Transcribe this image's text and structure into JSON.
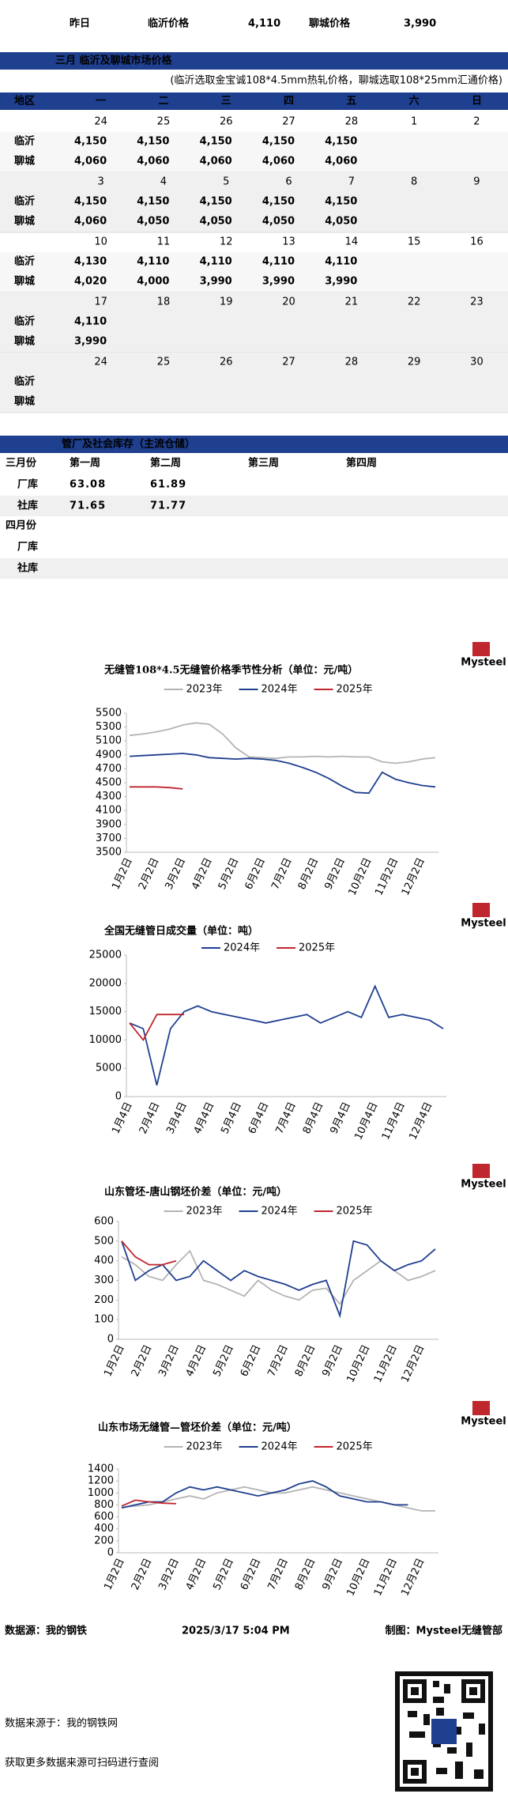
{
  "top": {
    "yesterday_label": "昨日",
    "linyi_label": "临沂价格",
    "linyi_price": "4,110",
    "liaocheng_label": "聊城价格",
    "liaocheng_price": "3,990"
  },
  "price_table": {
    "title": "三月  临沂及聊城市场价格",
    "note": "(临沂选取金宝诚108*4.5mm热轧价格，聊城选取108*25mm汇通价格)",
    "header": [
      "地区",
      "一",
      "二",
      "三",
      "四",
      "五",
      "六",
      "日"
    ],
    "row_labels": [
      "临沂",
      "聊城"
    ],
    "weeks": [
      {
        "dates": [
          "24",
          "25",
          "26",
          "27",
          "28",
          "1",
          "2"
        ],
        "linyi": [
          "4,150",
          "4,150",
          "4,150",
          "4,150",
          "4,150",
          null,
          null
        ],
        "linyi_colors": [
          null,
          null,
          null,
          null,
          null,
          null,
          null
        ],
        "liaocheng": [
          "4,060",
          "4,060",
          "4,060",
          "4,060",
          "4,060",
          null,
          null
        ],
        "liaocheng_colors": [
          null,
          null,
          null,
          null,
          null,
          null,
          null
        ]
      },
      {
        "dates": [
          "3",
          "4",
          "5",
          "6",
          "7",
          "8",
          "9"
        ],
        "linyi": [
          "4,150",
          "4,150",
          "4,150",
          "4,150",
          "4,150",
          null,
          null
        ],
        "linyi_colors": [
          null,
          null,
          null,
          null,
          null,
          null,
          null
        ],
        "liaocheng": [
          "4,060",
          "4,050",
          "4,050",
          "4,050",
          "4,050",
          null,
          null
        ],
        "liaocheng_colors": [
          null,
          "#2aa84a",
          null,
          null,
          null,
          null,
          null
        ]
      },
      {
        "dates": [
          "10",
          "11",
          "12",
          "13",
          "14",
          "15",
          "16"
        ],
        "linyi": [
          "4,130",
          "4,110",
          "4,110",
          "4,110",
          "4,110",
          null,
          null
        ],
        "linyi_colors": [
          "#2aa84a",
          "#2aa84a",
          null,
          null,
          null,
          null,
          null
        ],
        "liaocheng": [
          "4,020",
          "4,000",
          "3,990",
          "3,990",
          "3,990",
          null,
          null
        ],
        "liaocheng_colors": [
          "#2aa84a",
          "#2aa84a",
          "#2aa84a",
          null,
          null,
          null,
          null
        ]
      },
      {
        "dates": [
          "17",
          "18",
          "19",
          "20",
          "21",
          "22",
          "23"
        ],
        "linyi": [
          "4,110",
          null,
          null,
          null,
          null,
          null,
          null
        ],
        "linyi_colors": [
          null,
          null,
          null,
          null,
          null,
          null,
          null
        ],
        "liaocheng": [
          "3,990",
          null,
          null,
          null,
          null,
          null,
          null
        ],
        "liaocheng_colors": [
          null,
          null,
          null,
          null,
          null,
          null,
          null
        ]
      },
      {
        "dates": [
          "24",
          "25",
          "26",
          "27",
          "28",
          "29",
          "30"
        ],
        "linyi": [
          null,
          null,
          null,
          null,
          null,
          null,
          null
        ],
        "linyi_colors": [
          null,
          null,
          null,
          null,
          null,
          null,
          null
        ],
        "liaocheng": [
          null,
          null,
          null,
          null,
          null,
          null,
          null
        ],
        "liaocheng_colors": [
          null,
          null,
          null,
          null,
          null,
          null,
          null
        ]
      }
    ]
  },
  "inventory": {
    "title": "管厂及社会库存（主流仓储）",
    "week_header": [
      "第一周",
      "第二周",
      "第三周",
      "第四周"
    ],
    "months": [
      {
        "name": "三月份",
        "rows": [
          {
            "label": "厂库",
            "values": [
              "63.08",
              "61.89"
            ],
            "color": "#2aa84a"
          },
          {
            "label": "社库",
            "values": [
              "71.65",
              "71.77"
            ],
            "color": "#d02a2a"
          }
        ]
      },
      {
        "name": "四月份",
        "rows": [
          {
            "label": "厂库",
            "values": []
          },
          {
            "label": "社库",
            "values": []
          }
        ]
      }
    ]
  },
  "logo": "Mysteel",
  "chart_data": [
    {
      "type": "line",
      "title": "无缝管108*4.5无缝管价格季节性分析（单位：元/吨）",
      "categories": [
        "1月2日",
        null,
        "2月2日",
        null,
        "3月2日",
        null,
        "4月2日",
        null,
        "5月2日",
        null,
        "6月2日",
        null,
        "7月2日",
        null,
        "8月2日",
        null,
        "9月2日",
        null,
        "10月2日",
        null,
        "11月2日",
        null,
        "12月2日",
        null
      ],
      "ylim": [
        3500,
        5500
      ],
      "yticks": [
        3500,
        3700,
        3900,
        4100,
        4300,
        4500,
        4700,
        4900,
        5100,
        5300,
        5500
      ],
      "series": [
        {
          "name": "2023年",
          "color": "#b4b4b4",
          "values": [
            5180,
            5200,
            5230,
            5270,
            5330,
            5360,
            5340,
            5200,
            5000,
            4870,
            4860,
            4850,
            4870,
            4870,
            4880,
            4870,
            4880,
            4870,
            4870,
            4800,
            4780,
            4800,
            4840,
            4860
          ]
        },
        {
          "name": "2024年",
          "color": "#1f3f8f",
          "values": [
            4880,
            4890,
            4900,
            4910,
            4920,
            4900,
            4860,
            4850,
            4840,
            4850,
            4840,
            4820,
            4780,
            4720,
            4650,
            4560,
            4450,
            4360,
            4350,
            4650,
            4550,
            4500,
            4460,
            4440
          ]
        },
        {
          "name": "2025年",
          "color": "#c0262d",
          "values": [
            4440,
            4440,
            4440,
            4430,
            4410,
            null,
            null,
            null,
            null,
            null,
            null,
            null,
            null,
            null,
            null,
            null,
            null,
            null,
            null,
            null,
            null,
            null,
            null,
            null
          ]
        }
      ]
    },
    {
      "type": "line",
      "title": "全国无缝管日成交量（单位：吨）",
      "categories": [
        "1月4日",
        null,
        "2月4日",
        null,
        "3月4日",
        null,
        "4月4日",
        null,
        "5月4日",
        null,
        "6月4日",
        null,
        "7月4日",
        null,
        "8月4日",
        null,
        "9月4日",
        null,
        "10月4日",
        null,
        "11月4日",
        null,
        "12月4日",
        null
      ],
      "ylim": [
        0,
        25000
      ],
      "yticks": [
        0,
        5000,
        10000,
        15000,
        20000,
        25000
      ],
      "series": [
        {
          "name": "2024年",
          "color": "#1f3f8f",
          "values": [
            13000,
            12000,
            2000,
            12000,
            15000,
            16000,
            15000,
            14500,
            14000,
            13500,
            13000,
            13500,
            14000,
            14500,
            13000,
            14000,
            15000,
            14000,
            19500,
            14000,
            14500,
            14000,
            13500,
            12000
          ]
        },
        {
          "name": "2025年",
          "color": "#c0262d",
          "values": [
            13000,
            10000,
            14500,
            14500,
            14500,
            null,
            null,
            null,
            null,
            null,
            null,
            null,
            null,
            null,
            null,
            null,
            null,
            null,
            null,
            null,
            null,
            null,
            null,
            null
          ]
        }
      ]
    },
    {
      "type": "line",
      "title": "山东管坯-唐山钢坯价差（单位：元/吨）",
      "categories": [
        "1月2日",
        null,
        "2月2日",
        null,
        "3月2日",
        null,
        "4月2日",
        null,
        "5月2日",
        null,
        "6月2日",
        null,
        "7月2日",
        null,
        "8月2日",
        null,
        "9月2日",
        null,
        "10月2日",
        null,
        "11月2日",
        null,
        "12月2日",
        null
      ],
      "ylim": [
        0,
        600
      ],
      "yticks": [
        0,
        100,
        200,
        300,
        400,
        500,
        600
      ],
      "series": [
        {
          "name": "2023年",
          "color": "#b4b4b4",
          "values": [
            420,
            380,
            320,
            300,
            380,
            450,
            300,
            280,
            250,
            220,
            300,
            250,
            220,
            200,
            250,
            260,
            180,
            300,
            350,
            400,
            350,
            300,
            320,
            350
          ]
        },
        {
          "name": "2024年",
          "color": "#1f3f8f",
          "values": [
            500,
            300,
            350,
            380,
            300,
            320,
            400,
            350,
            300,
            350,
            320,
            300,
            280,
            250,
            280,
            300,
            120,
            500,
            480,
            400,
            350,
            380,
            400,
            460
          ]
        },
        {
          "name": "2025年",
          "color": "#c0262d",
          "values": [
            500,
            420,
            380,
            380,
            400,
            null,
            null,
            null,
            null,
            null,
            null,
            null,
            null,
            null,
            null,
            null,
            null,
            null,
            null,
            null,
            null,
            null,
            null,
            null
          ]
        }
      ]
    },
    {
      "type": "line",
      "title": "山东市场无缝管—管坯价差（单位：元/吨）",
      "categories": [
        "1月2日",
        null,
        "2月2日",
        null,
        "3月2日",
        null,
        "4月2日",
        null,
        "5月2日",
        null,
        "6月2日",
        null,
        "7月2日",
        null,
        "8月2日",
        null,
        "9月2日",
        null,
        "10月2日",
        null,
        "11月2日",
        null,
        "12月2日",
        null
      ],
      "ylim": [
        0,
        1400
      ],
      "yticks": [
        0,
        200,
        400,
        600,
        800,
        1000,
        1200,
        1400
      ],
      "series": [
        {
          "name": "2023年",
          "color": "#b4b4b4",
          "values": [
            760,
            780,
            800,
            850,
            900,
            950,
            900,
            1000,
            1050,
            1100,
            1050,
            1000,
            1000,
            1050,
            1100,
            1050,
            1000,
            950,
            900,
            850,
            800,
            750,
            700,
            700
          ]
        },
        {
          "name": "2024年",
          "color": "#1f3f8f",
          "values": [
            750,
            800,
            850,
            850,
            1000,
            1100,
            1050,
            1100,
            1050,
            1000,
            950,
            1000,
            1050,
            1150,
            1200,
            1100,
            950,
            900,
            850,
            850,
            800,
            800,
            null,
            null
          ]
        },
        {
          "name": "2025年",
          "color": "#c0262d",
          "values": [
            780,
            880,
            850,
            830,
            820,
            null,
            null,
            null,
            null,
            null,
            null,
            null,
            null,
            null,
            null,
            null,
            null,
            null,
            null,
            null,
            null,
            null,
            null,
            null
          ]
        }
      ]
    }
  ],
  "footer": {
    "source": "数据源：我的钢铁",
    "time": "2025/3/17 5:04 PM",
    "maker": "制图：Mysteel无缝管部",
    "qr_source": "数据来源于：我的钢铁网",
    "qr_hint": "获取更多数据来源可扫码进行查阅"
  }
}
